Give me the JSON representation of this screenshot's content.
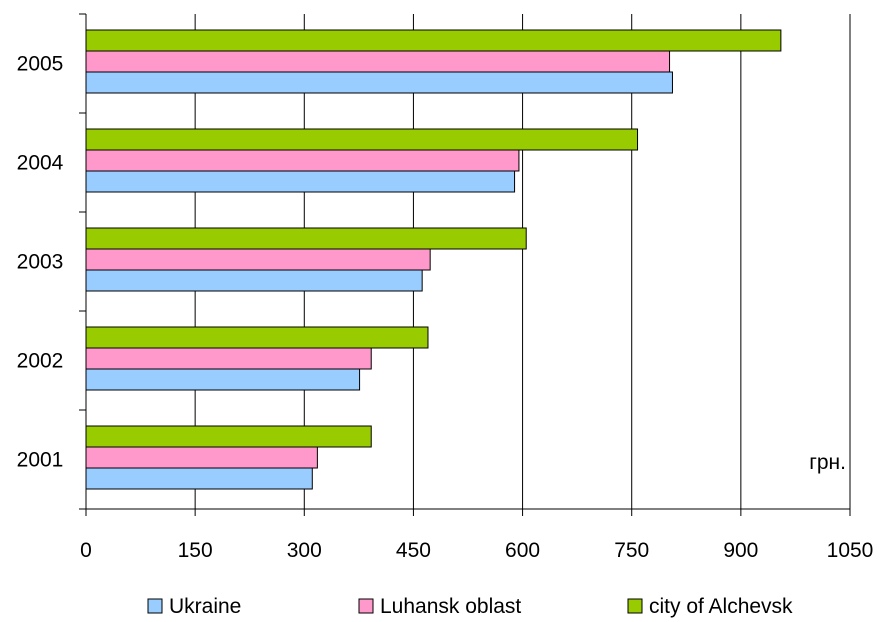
{
  "chart_data": {
    "type": "bar",
    "orientation": "horizontal",
    "categories": [
      "2005",
      "2004",
      "2003",
      "2002",
      "2001"
    ],
    "series": [
      {
        "name": "city of Alchevsk",
        "color": "#99cc00",
        "values": [
          955,
          758,
          605,
          470,
          392
        ]
      },
      {
        "name": "Luhansk oblast",
        "color": "#ff99cc",
        "values": [
          802,
          595,
          473,
          392,
          318
        ]
      },
      {
        "name": "Ukraine",
        "color": "#99ccff",
        "values": [
          806,
          589,
          462,
          376,
          311
        ]
      }
    ],
    "legend_order": [
      "Ukraine",
      "Luhansk oblast",
      "city of Alchevsk"
    ],
    "x_ticks": [
      0,
      150,
      300,
      450,
      600,
      750,
      900,
      1050
    ],
    "xlim": [
      0,
      1050
    ],
    "unit_label": "грн.",
    "grid": "vertical",
    "legend_position": "bottom"
  }
}
